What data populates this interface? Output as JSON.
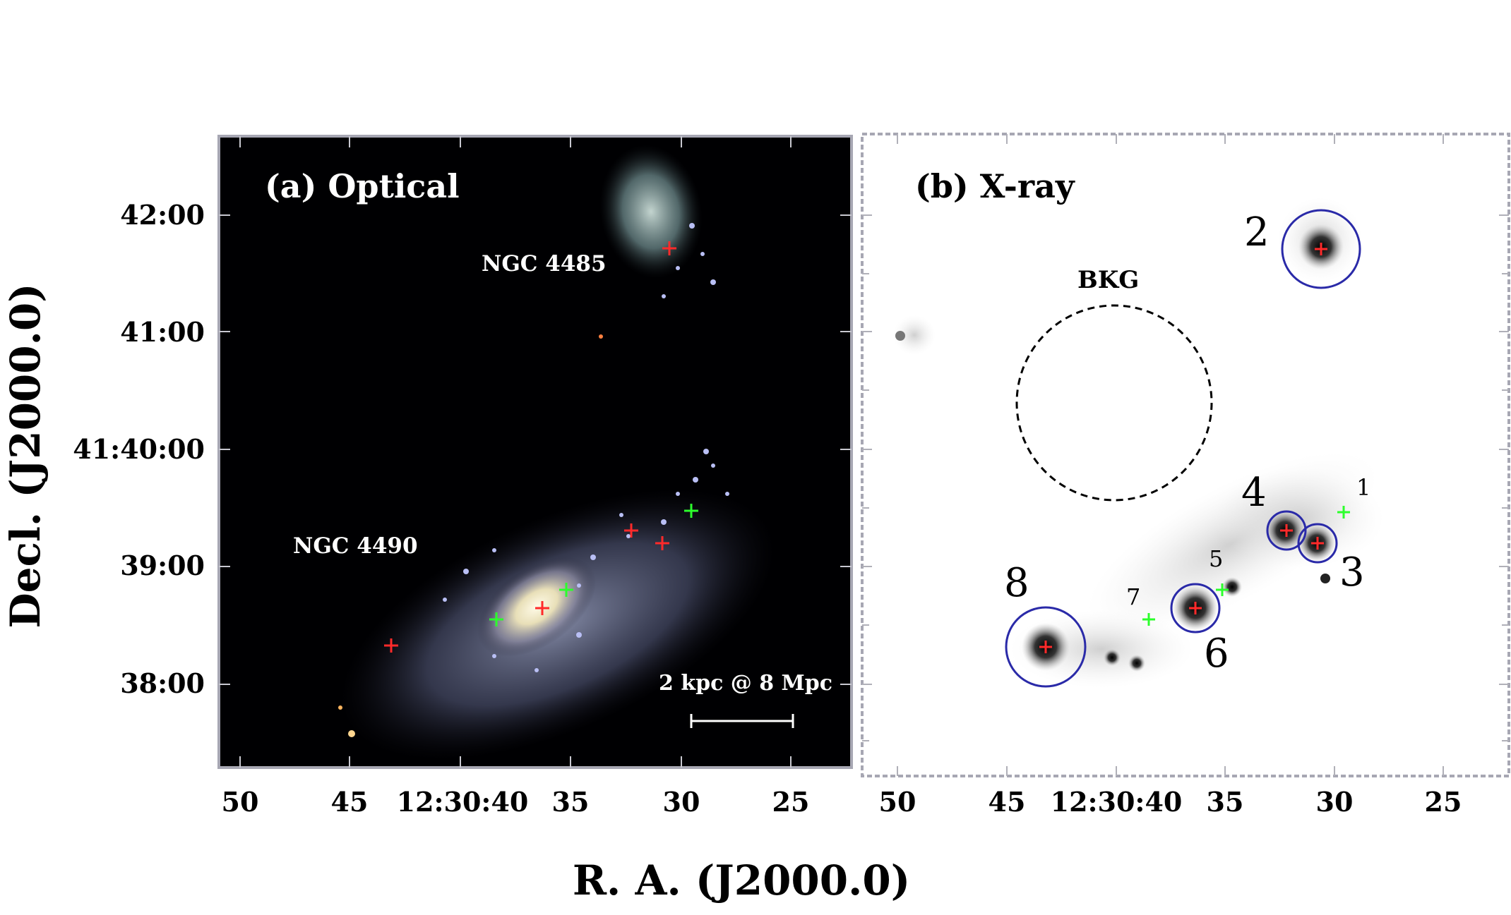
{
  "axes": {
    "x_title": "R. A. (J2000.0)",
    "y_title": "Decl. (J2000.0)",
    "y_ticks": [
      "42:00",
      "41:00",
      "41:40:00",
      "39:00",
      "38:00"
    ],
    "x_ticks": [
      "50",
      "45",
      "12:30:40",
      "35",
      "30",
      "25"
    ]
  },
  "panel_a": {
    "label": "(a) Optical",
    "galaxies": [
      "NGC 4485",
      "NGC 4490"
    ],
    "scale_bar": "2 kpc @ 8 Mpc"
  },
  "panel_b": {
    "label": "(b) X-ray",
    "background_region": "BKG",
    "sources": [
      "1",
      "2",
      "3",
      "4",
      "5",
      "6",
      "7",
      "8"
    ]
  },
  "colors": {
    "red_marker": "#ff2a2a",
    "green_marker": "#2cff2c",
    "circle": "#2a2aa8",
    "frame": "#a7a7b3"
  }
}
